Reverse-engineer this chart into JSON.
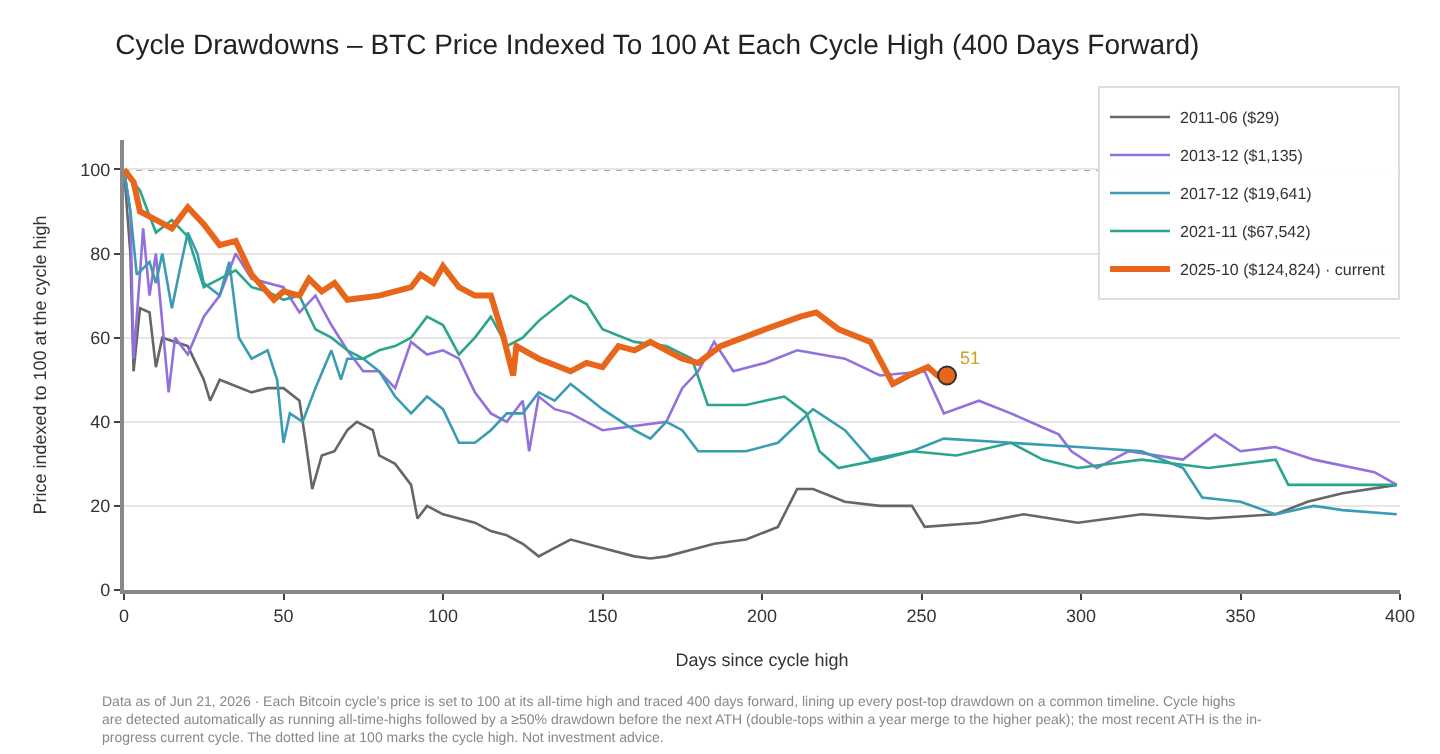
{
  "chart_data": {
    "type": "line",
    "title": "Cycle Drawdowns – BTC Price Indexed To 100 At Each Cycle High (400 Days Forward)",
    "xlabel": "Days since cycle high",
    "ylabel": "Price indexed to 100 at the cycle high",
    "xlim": [
      0,
      400
    ],
    "xticks": [
      0,
      50,
      100,
      150,
      200,
      250,
      300,
      350,
      400
    ],
    "ylim": [
      0,
      107
    ],
    "yticks": [
      0,
      20,
      40,
      60,
      80,
      100
    ],
    "grid": "y",
    "legend": "top right",
    "ref_lines": [
      {
        "axis": "y",
        "value": 100,
        "color": "#aaaaaa",
        "line_style": "dotted"
      }
    ],
    "series": [
      {
        "name": "2011-06 ($29)",
        "color": "#666666",
        "x": [
          0,
          2,
          3,
          5,
          8,
          10,
          12,
          20,
          25,
          27,
          30,
          40,
          45,
          50,
          55,
          57,
          59,
          62,
          66,
          70,
          73,
          78,
          80,
          85,
          90,
          92,
          95,
          100,
          105,
          110,
          115,
          120,
          125,
          130,
          135,
          140,
          150,
          160,
          165,
          170,
          180,
          185,
          195,
          205,
          211,
          216,
          226,
          237,
          247,
          251,
          268,
          282,
          299,
          319,
          340,
          361,
          371,
          382,
          399
        ],
        "values": [
          100,
          80,
          52,
          67,
          66,
          53,
          60,
          58,
          50,
          45,
          50,
          47,
          48,
          48,
          45,
          35,
          24,
          32,
          33,
          38,
          40,
          38,
          32,
          30,
          25,
          17,
          20,
          18,
          17,
          16,
          14,
          13,
          11,
          8,
          10,
          12,
          10,
          8,
          7.5,
          8,
          10,
          11,
          12,
          15,
          24,
          24,
          21,
          20,
          20,
          15,
          16,
          18,
          16,
          18,
          17,
          18,
          21,
          23,
          25
        ]
      },
      {
        "name": "2013-12 ($1,135)",
        "color": "#9370db",
        "x": [
          0,
          2,
          3,
          5,
          6,
          8,
          10,
          14,
          16,
          20,
          25,
          30,
          35,
          40,
          50,
          55,
          60,
          65,
          70,
          75,
          80,
          85,
          90,
          95,
          100,
          105,
          110,
          115,
          120,
          125,
          127,
          130,
          135,
          140,
          150,
          160,
          170,
          175,
          180,
          185,
          191,
          201,
          211,
          226,
          237,
          251,
          257,
          268,
          278,
          287,
          293,
          297,
          305,
          315,
          332,
          342,
          350,
          361,
          373,
          392,
          399
        ],
        "values": [
          100,
          90,
          55,
          75,
          86,
          70,
          80,
          47,
          60,
          56,
          65,
          70,
          80,
          74,
          72,
          66,
          70,
          63,
          57,
          52,
          52,
          48,
          59,
          56,
          57,
          55,
          47,
          42,
          40,
          45,
          33,
          46,
          43,
          42,
          38,
          39,
          40,
          48,
          52,
          59,
          52,
          54,
          57,
          55,
          51,
          52,
          42,
          45,
          42,
          39,
          37,
          33,
          29,
          33,
          31,
          37,
          33,
          34,
          31,
          28,
          25
        ]
      },
      {
        "name": "2017-12 ($19,641)",
        "color": "#3a9bb5",
        "x": [
          0,
          2,
          4,
          8,
          10,
          12,
          15,
          18,
          20,
          23,
          25,
          30,
          33,
          36,
          40,
          45,
          48,
          50,
          52,
          56,
          60,
          65,
          68,
          70,
          75,
          80,
          85,
          90,
          95,
          100,
          105,
          110,
          115,
          120,
          125,
          130,
          135,
          140,
          145,
          150,
          160,
          165,
          170,
          175,
          180,
          185,
          195,
          205,
          216,
          226,
          234,
          247,
          257,
          278,
          299,
          319,
          332,
          338,
          350,
          361,
          373,
          382,
          399
        ],
        "values": [
          100,
          90,
          75,
          78,
          73,
          80,
          67,
          78,
          85,
          80,
          73,
          70,
          78,
          60,
          55,
          57,
          50,
          35,
          42,
          40,
          48,
          57,
          50,
          55,
          55,
          52,
          46,
          42,
          46,
          43,
          35,
          35,
          38,
          42,
          42,
          47,
          45,
          49,
          46,
          43,
          38,
          36,
          40,
          38,
          33,
          33,
          33,
          35,
          43,
          38,
          31,
          33,
          36,
          35,
          34,
          33,
          29,
          22,
          21,
          18,
          20,
          19,
          18
        ]
      },
      {
        "name": "2021-11 ($67,542)",
        "color": "#2ca58d",
        "x": [
          0,
          5,
          10,
          15,
          20,
          25,
          30,
          35,
          40,
          45,
          50,
          55,
          60,
          65,
          70,
          75,
          80,
          85,
          90,
          95,
          100,
          105,
          110,
          115,
          120,
          125,
          130,
          140,
          145,
          150,
          160,
          170,
          178,
          183,
          195,
          207,
          214,
          218,
          224,
          237,
          247,
          261,
          278,
          288,
          299,
          319,
          340,
          361,
          365,
          382,
          399
        ],
        "values": [
          100,
          95,
          85,
          88,
          84,
          72,
          74,
          76,
          72,
          71,
          69,
          70,
          62,
          60,
          57,
          55,
          57,
          58,
          60,
          65,
          63,
          56,
          60,
          65,
          58,
          60,
          64,
          70,
          68,
          62,
          59,
          58,
          55,
          44,
          44,
          46,
          42,
          33,
          29,
          31,
          33,
          32,
          35,
          31,
          29,
          31,
          29,
          31,
          25,
          25,
          25
        ]
      },
      {
        "name": "2025-10 ($124,824) · current",
        "color": "#e8661c",
        "x": [
          0,
          3,
          5,
          10,
          15,
          20,
          25,
          30,
          35,
          40,
          47,
          50,
          55,
          58,
          62,
          66,
          70,
          80,
          90,
          93,
          97,
          100,
          105,
          110,
          115,
          119,
          122,
          123,
          130,
          140,
          145,
          150,
          155,
          160,
          165,
          170,
          175,
          180,
          187,
          201,
          212,
          217,
          224,
          234,
          241,
          246,
          252,
          255,
          258
        ],
        "values": [
          100,
          97,
          90,
          88,
          86,
          91,
          87,
          82,
          83,
          75,
          69,
          71,
          70,
          74,
          71,
          73,
          69,
          70,
          72,
          75,
          73,
          77,
          72,
          70,
          70,
          60,
          51,
          58,
          55,
          52,
          54,
          53,
          58,
          57,
          59,
          57,
          55,
          54,
          58,
          62,
          65,
          66,
          62,
          59,
          49,
          51,
          53,
          51,
          51
        ]
      }
    ],
    "annotations": [
      {
        "text": "51",
        "x": 258,
        "y": 51
      },
      "Data as of Jun 21, 2026 · Each Bitcoin cycle's price is set to 100 at its all-time high and traced 400 days forward, lining up every post-top drawdown on a common timeline. Cycle highs are detected automatically as running all-time-highs followed by a ≥50% drawdown before the next ATH (double-tops within a year merge to the higher peak); the most recent ATH is the in-progress current cycle. The dotted line at 100 marks the cycle high. Not investment advice."
    ]
  }
}
